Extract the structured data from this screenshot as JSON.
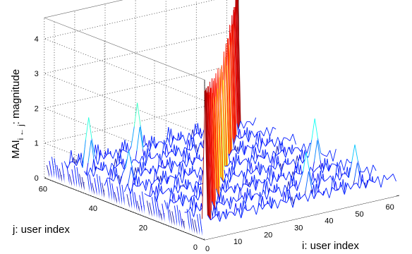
{
  "chart_data": {
    "type": "surface",
    "title": "",
    "xlabel": "i: user index",
    "ylabel": "j: user index",
    "zlabel": "MAI",
    "zlabel_sub": "i ← j",
    "zlabel_suffix": ": magnitude",
    "x_ticks": [
      "0",
      "10",
      "20",
      "30",
      "40",
      "50",
      "60"
    ],
    "y_ticks": [
      "0",
      "20",
      "40",
      "60"
    ],
    "z_ticks": [
      "0",
      "1",
      "2",
      "3",
      "4"
    ],
    "xlim": [
      0,
      64
    ],
    "ylim": [
      0,
      64
    ],
    "zlim": [
      0,
      4
    ],
    "grid": true,
    "style": "waterfall mesh, blue baseline lines, colored peaks (colormap jet)",
    "peaks": [
      {
        "i": 0,
        "j": 0,
        "z": 4.3,
        "note": "diagonal i=j ridge, tallest peaks near far corner"
      },
      {
        "i": 32,
        "j": 32,
        "z": 3.1
      },
      {
        "i": 63,
        "j": 63,
        "z": 4.3
      },
      {
        "i": 8,
        "j": 56,
        "z": 1.8
      },
      {
        "i": 24,
        "j": 56,
        "z": 1.9
      },
      {
        "i": 56,
        "j": 24,
        "z": 1.7
      },
      {
        "i": 40,
        "j": 8,
        "z": 1.5
      },
      {
        "i": 56,
        "j": 8,
        "z": 1.4
      },
      {
        "i": 8,
        "j": 40,
        "z": 1.3
      }
    ]
  }
}
